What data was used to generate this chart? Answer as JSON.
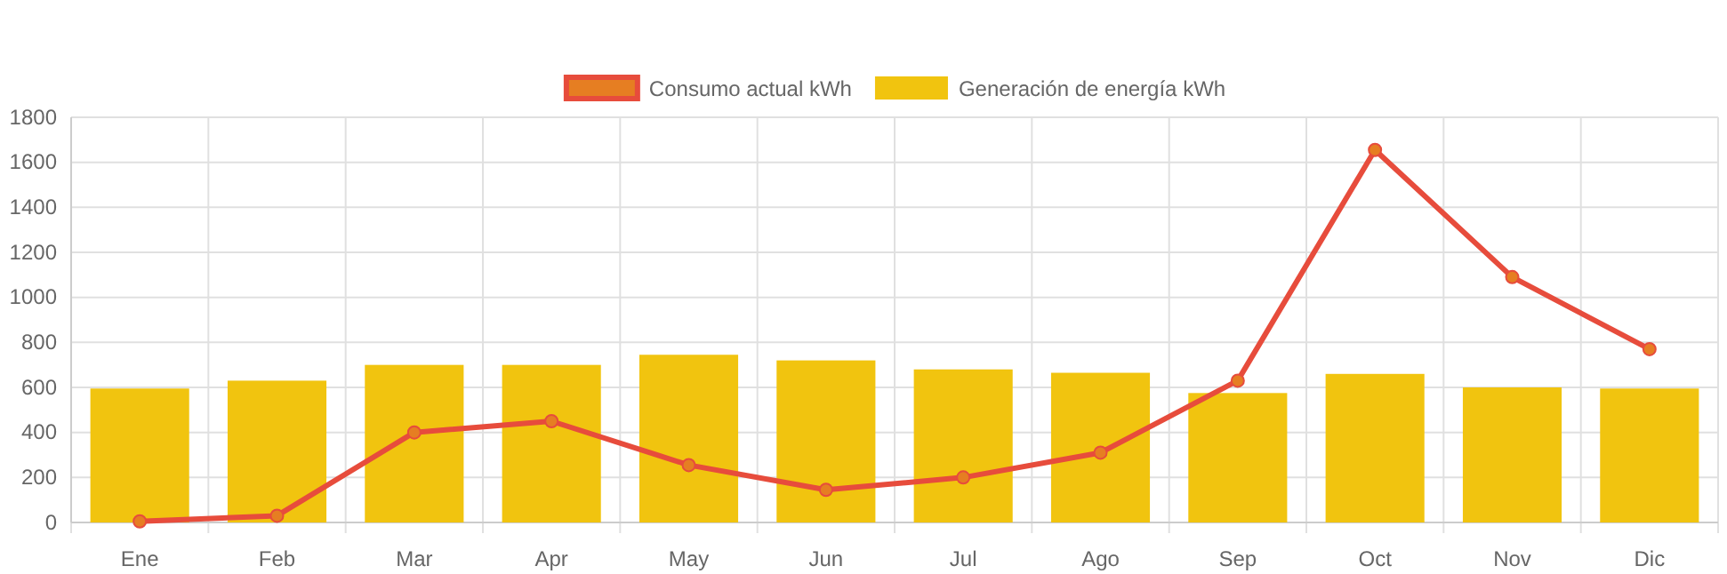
{
  "chart_data": {
    "type": "bar",
    "categories": [
      "Ene",
      "Feb",
      "Mar",
      "Apr",
      "May",
      "Jun",
      "Jul",
      "Ago",
      "Sep",
      "Oct",
      "Nov",
      "Dic"
    ],
    "series": [
      {
        "name": "Consumo actual kWh",
        "type": "line",
        "color": "#e74c3c",
        "values": [
          5,
          30,
          400,
          450,
          255,
          145,
          200,
          310,
          630,
          1655,
          1090,
          770
        ]
      },
      {
        "name": "Generación de energía kWh",
        "color": "#f1c40f",
        "values": [
          595,
          630,
          700,
          700,
          745,
          720,
          680,
          665,
          575,
          660,
          600,
          595
        ]
      }
    ],
    "ylim": [
      0,
      1800
    ],
    "yticks": [
      0,
      200,
      400,
      600,
      800,
      1000,
      1200,
      1400,
      1600,
      1800
    ],
    "grid": true,
    "legend": "top",
    "marker": "circle"
  }
}
